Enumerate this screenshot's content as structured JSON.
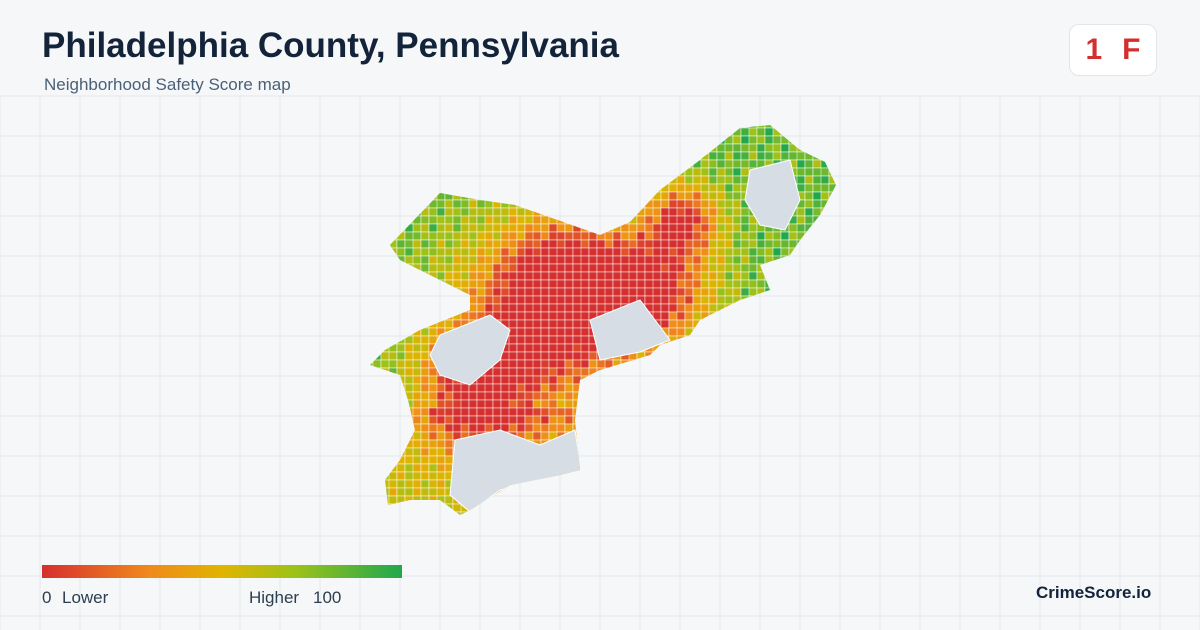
{
  "header": {
    "title": "Philadelphia County, Pennsylvania",
    "subtitle": "Neighborhood Safety Score map"
  },
  "score": {
    "rank": "1",
    "grade": "F"
  },
  "legend": {
    "min": "0",
    "min_label": "Lower",
    "max_label": "Higher",
    "max": "100"
  },
  "footer": {
    "brand": "CrimeScore.io"
  }
}
